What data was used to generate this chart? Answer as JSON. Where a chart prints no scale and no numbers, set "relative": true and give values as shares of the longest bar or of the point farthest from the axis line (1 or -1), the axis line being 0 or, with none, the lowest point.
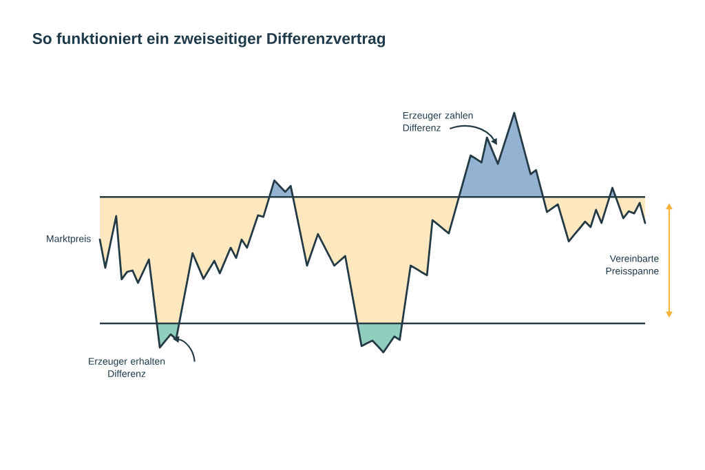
{
  "chart_data": {
    "type": "line",
    "title": "So funktioniert ein zweiseitiger Differenzvertrag",
    "relative": true,
    "legend": false,
    "marker": "none",
    "line_style": "solid",
    "categories": [
      null,
      null,
      null,
      null,
      null,
      null,
      null,
      null,
      null,
      null,
      null,
      null,
      null,
      null,
      null,
      null,
      null,
      null,
      null,
      null,
      null,
      null,
      null,
      null,
      null,
      null,
      null,
      null,
      null,
      null,
      null,
      null,
      null,
      null,
      null,
      null,
      null,
      null,
      null,
      null,
      null,
      null,
      null,
      null,
      null,
      null,
      null,
      null,
      null,
      null,
      null,
      null,
      null,
      null,
      null,
      null,
      null,
      null,
      null,
      null,
      null,
      null,
      null,
      null,
      null,
      null,
      null,
      null,
      null,
      null,
      null,
      null,
      null,
      null,
      null,
      null,
      null,
      null,
      null,
      null,
      null,
      null,
      null,
      null,
      null,
      null,
      null,
      null,
      null,
      null,
      null,
      null,
      null,
      null,
      null,
      null,
      null,
      null,
      null,
      null,
      null
    ],
    "series": [
      {
        "name": "Marktpreis",
        "color": "#243a45",
        "values": [
          0.471,
          0.353,
          0.461,
          0.569,
          0.305,
          0.336,
          0.342,
          0.29,
          0.339,
          0.388,
          0.204,
          0.02,
          0.048,
          0.075,
          0.055,
          0.175,
          0.294,
          0.414,
          0.361,
          0.307,
          0.345,
          0.382,
          0.33,
          0.384,
          0.437,
          0.394,
          0.471,
          0.437,
          0.505,
          0.572,
          0.566,
          0.642,
          0.718,
          0.694,
          0.67,
          0.695,
          0.584,
          0.473,
          0.362,
          0.428,
          0.494,
          0.45,
          0.406,
          0.362,
          0.382,
          0.402,
          0.277,
          0.151,
          0.026,
          0.038,
          0.049,
          0.025,
          0,
          0.033,
          0.066,
          0.052,
          0.207,
          0.362,
          0.349,
          0.335,
          0.322,
          0.552,
          0.534,
          0.515,
          0.497,
          0.578,
          0.66,
          0.741,
          0.822,
          0.808,
          0.793,
          0.897,
          0.842,
          0.787,
          0.858,
          0.929,
          1,
          0.915,
          0.829,
          0.744,
          0.761,
          0.674,
          0.586,
          0.602,
          0.618,
          0.541,
          0.463,
          0.491,
          0.518,
          0.546,
          0.523,
          0.595,
          0.54,
          0.614,
          0.687,
          0.624,
          0.56,
          0.589,
          0.58,
          0.624,
          0.54
        ]
      }
    ],
    "ref_lines": [
      {
        "axis": "y",
        "value": 0.649,
        "color": "#243a45"
      },
      {
        "axis": "y",
        "value": 0.121,
        "color": "#243a45"
      }
    ],
    "annotations": [
      "Vereinbarte Preisspanne",
      "Erzeuger zahlen Differenz",
      "Erzeuger erhalten Differenz"
    ]
  }
}
